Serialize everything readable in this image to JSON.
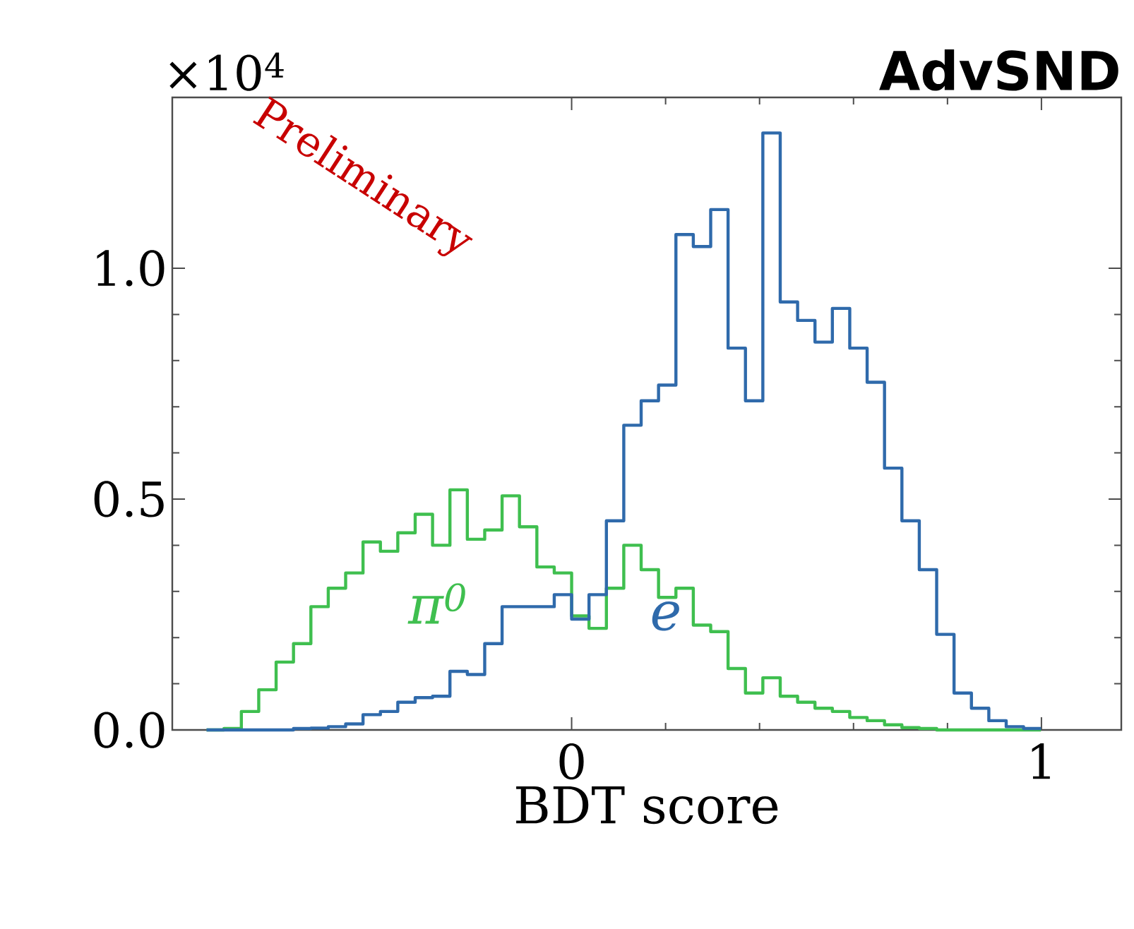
{
  "chart_data": {
    "type": "histogram",
    "title": "AdvSND",
    "xlabel": "BDT score",
    "annotations": [
      "×10$^{4}$",
      "Preliminary"
    ],
    "bins": [
      -0.777,
      -0.74,
      -0.703,
      -0.666,
      -0.629,
      -0.592,
      -0.555,
      -0.518,
      -0.481,
      -0.444,
      -0.407,
      -0.37,
      -0.333,
      -0.296,
      -0.259,
      -0.222,
      -0.185,
      -0.148,
      -0.111,
      -0.074,
      -0.037,
      0.0,
      0.037,
      0.074,
      0.111,
      0.148,
      0.185,
      0.222,
      0.259,
      0.296,
      0.333,
      0.37,
      0.407,
      0.444,
      0.481,
      0.518,
      0.555,
      0.592,
      0.629,
      0.666,
      0.703,
      0.74,
      0.777,
      0.814,
      0.851,
      0.888,
      0.925,
      0.962,
      0.999
    ],
    "series": [
      {
        "name": "π$^{0}$",
        "color": "#3fbf4f",
        "values": [
          0,
          0.003,
          0.04,
          0.087,
          0.147,
          0.187,
          0.267,
          0.307,
          0.34,
          0.407,
          0.387,
          0.427,
          0.467,
          0.4,
          0.52,
          0.413,
          0.433,
          0.507,
          0.44,
          0.353,
          0.34,
          0.247,
          0.22,
          0.307,
          0.4,
          0.347,
          0.287,
          0.307,
          0.227,
          0.213,
          0.133,
          0.08,
          0.113,
          0.073,
          0.06,
          0.047,
          0.04,
          0.027,
          0.02,
          0.011,
          0.005,
          0.003,
          0,
          0,
          0,
          0,
          0,
          0
        ]
      },
      {
        "name": "e",
        "color": "#2f6aab",
        "values": [
          0,
          0,
          0,
          0,
          0,
          0.003,
          0.004,
          0.007,
          0.013,
          0.033,
          0.04,
          0.06,
          0.07,
          0.073,
          0.127,
          0.12,
          0.187,
          0.267,
          0.267,
          0.267,
          0.293,
          0.24,
          0.293,
          0.453,
          0.66,
          0.713,
          0.747,
          1.073,
          1.047,
          1.127,
          0.827,
          0.713,
          1.293,
          0.927,
          0.887,
          0.84,
          0.913,
          0.827,
          0.753,
          0.567,
          0.453,
          0.347,
          0.207,
          0.08,
          0.047,
          0.02,
          0.007,
          0.003
        ]
      }
    ],
    "xlim": [
      -0.85,
      1.17
    ],
    "ylim": [
      0,
      1.37
    ],
    "xticks": [
      0,
      1
    ],
    "yticks": [
      {
        "value": 0,
        "label": "0.0"
      },
      {
        "value": 0.5,
        "label": "0.5"
      },
      {
        "value": 1.0,
        "label": "1.0"
      }
    ]
  }
}
